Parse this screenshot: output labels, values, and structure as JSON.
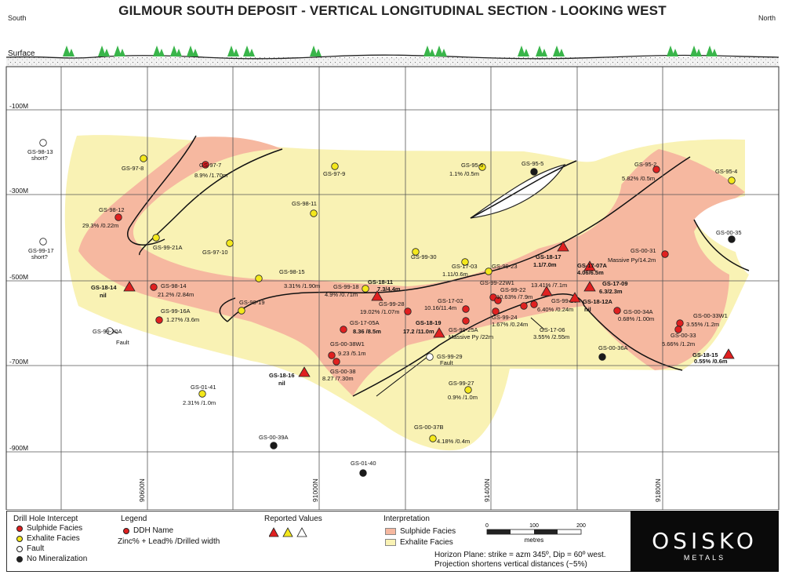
{
  "title": "GILMOUR SOUTH DEPOSIT - VERTICAL LONGITUDINAL SECTION - LOOKING WEST",
  "orientation": {
    "left": "South",
    "right": "North"
  },
  "surface_label": "Surface",
  "depth_labels": [
    "-100M",
    "-300M",
    "-500M",
    "-700M",
    "-900M"
  ],
  "easting_labels": [
    "90600N",
    "91000N",
    "91400N",
    "91800N"
  ],
  "colors": {
    "sulphide": "#f6b8a0",
    "exhalite": "#f9f2b4",
    "red": "#e02020",
    "yellow": "#f4e81c",
    "tree": "#39b54a",
    "grid": "#555555"
  },
  "holes": [
    {
      "name": "GS-98-13",
      "sub": "short?",
      "type": "fault"
    },
    {
      "name": "GS-97-8",
      "type": "exhalite"
    },
    {
      "name": "GS-97-7",
      "value": "8.9% /1.70m",
      "type": "sulphide"
    },
    {
      "name": "GS-97-9",
      "type": "exhalite"
    },
    {
      "name": "GS-95-6",
      "value": "1.1% /0.5m",
      "type": "exhalite"
    },
    {
      "name": "GS-95-5",
      "type": "nomin"
    },
    {
      "name": "GS-95-2",
      "value": "5.82% /0.5m",
      "type": "sulphide"
    },
    {
      "name": "GS-95-4",
      "type": "exhalite"
    },
    {
      "name": "GS-98-12",
      "value": "29.3% /0.22m",
      "type": "sulphide"
    },
    {
      "name": "GS-98-11",
      "type": "exhalite"
    },
    {
      "name": "GS-99-21A",
      "type": "exhalite"
    },
    {
      "name": "GS-97-10",
      "type": "exhalite"
    },
    {
      "name": "GS-99-17",
      "sub": "short?",
      "type": "fault"
    },
    {
      "name": "GS-00-35",
      "type": "nomin"
    },
    {
      "name": "GS-99-30",
      "type": "exhalite"
    },
    {
      "name": "GS-17-03",
      "value": "1.11/0.6m",
      "type": "exhalite"
    },
    {
      "name": "GS-99-23",
      "type": "exhalite"
    },
    {
      "name": "GS-00-31",
      "value": "Massive Py/14.2m",
      "type": "sulphide"
    },
    {
      "name": "GS-98-15",
      "value": "3.31% /1.90m",
      "type": "exhalite"
    },
    {
      "name": "GS-98-14",
      "value": "21.2% /2.84m",
      "type": "sulphide"
    },
    {
      "name": "GS-99-18",
      "value": "4.9% /0.71m",
      "type": "exhalite"
    },
    {
      "name": "GS-99-22W1",
      "type": "sulphide"
    },
    {
      "name": "GS-99-22",
      "value": "10.63% /7.9m",
      "type": "sulphide"
    },
    {
      "name": "GS-98-19",
      "type": "exhalite"
    },
    {
      "name": "GS-99-28",
      "value": "19.02% /1.07m",
      "type": "sulphide"
    },
    {
      "name": "GS-17-02",
      "value": "10.16/11.4m",
      "type": "sulphide"
    },
    {
      "name": "GS-99-26",
      "value": "6.40% /0.24m",
      "type": "sulphide"
    },
    {
      "name": "GS-99-24",
      "value": "1.67% /0.24m",
      "type": "sulphide"
    },
    {
      "name": "GS-99-16A",
      "value": "1.27% /3.6m",
      "type": "sulphide"
    },
    {
      "name": "GS-00-34A",
      "value": "0.68% /1.00m",
      "type": "sulphide"
    },
    {
      "name": "GS-00-33W1",
      "value": "3.55% /1.2m",
      "type": "sulphide"
    },
    {
      "name": "GS-00-33",
      "value": "5.66% /1.2m",
      "type": "sulphide"
    },
    {
      "name": "GS-99-20A",
      "sub": "Fault",
      "type": "fault"
    },
    {
      "name": "GS-17-05A",
      "value": "8.36 /8.5m",
      "type": "sulphide",
      "bold": true
    },
    {
      "name": "GS-99-25A",
      "value": "Massive Py /22m",
      "type": "sulphide"
    },
    {
      "name": "GS-17-06",
      "value": "3.55% /2.55m",
      "type": "sulphide"
    },
    {
      "name": "GS-00-38W1",
      "value": "9.23 /5.1m",
      "type": "sulphide"
    },
    {
      "name": "GS-00-36A",
      "type": "nomin"
    },
    {
      "name": "GS-99-29",
      "sub": "Fault",
      "type": "fault"
    },
    {
      "name": "GS-00-38",
      "value": "8.27 /7.30m",
      "type": "sulphide"
    },
    {
      "name": "GS-01-41",
      "value": "2.31% /1.0m",
      "type": "exhalite"
    },
    {
      "name": "GS-99-27",
      "value": "0.9% /1.0m",
      "type": "exhalite"
    },
    {
      "name": "GS-00-37B",
      "value": "4.18% /0.4m",
      "type": "exhalite"
    },
    {
      "name": "GS-00-39A",
      "type": "nomin"
    },
    {
      "name": "GS-01-40",
      "type": "nomin"
    }
  ],
  "reported": [
    {
      "name": "GS-18-14",
      "value": "nil"
    },
    {
      "name": "GS-18-11",
      "value": "7.3/4.4m"
    },
    {
      "name": "GS-18-17",
      "value": "1.1/7.0m"
    },
    {
      "name": "GS-17-07A",
      "value": "4.06/6.5m"
    },
    {
      "name": "GS-17-09",
      "value": "6.3/2.3m"
    },
    {
      "name": "GS-18-12A",
      "value": "nil"
    },
    {
      "name": "GS-18-19",
      "value": "17.2 /11.0m"
    },
    {
      "name": "GS-18-16",
      "value": "nil"
    },
    {
      "name": "GS-18-15",
      "value": "0.55% /0.6m"
    },
    {
      "name": "13.41% /7.1m",
      "value": ""
    }
  ],
  "fault_labels": [
    "Fault",
    "Fault"
  ],
  "legend": {
    "drill_title": "Drill Hole Intercept",
    "drill_items": [
      "Sulphide Facies",
      "Exhalite Facies",
      "Fault",
      "No Mineralization"
    ],
    "legend_title": "Legend",
    "ddh_name": "DDH Name",
    "ddh_format": "Zinc% + Lead% /Drilled width",
    "reported_title": "Reported Values",
    "interp_title": "Interpretation",
    "interp_items": [
      "Sulphide Facies",
      "Exhalite Facies"
    ],
    "scale_ticks": [
      "0",
      "100",
      "200"
    ],
    "scale_unit": "metres",
    "horizon_note": "Horizon Plane: strike = azm 345º, Dip = 60º west.",
    "projection_note": "Projection shortens vertical distances (~5%)",
    "logo_main": "OSISKO",
    "logo_sub": "METALS"
  }
}
